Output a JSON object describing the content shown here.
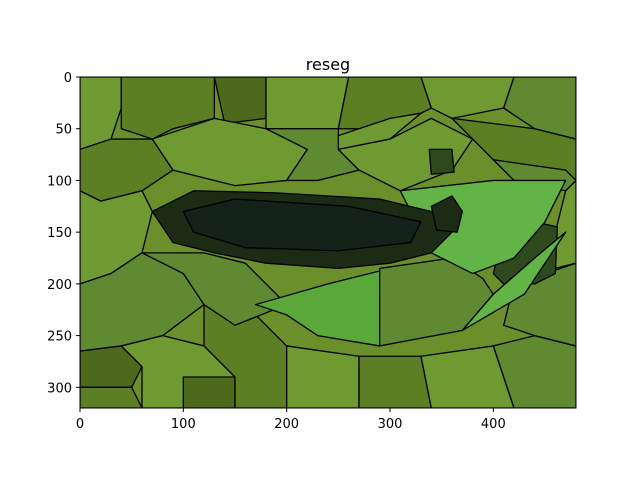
{
  "chart_data": {
    "type": "heatmap",
    "title": "reseg",
    "image_size": {
      "width": 480,
      "height": 320
    },
    "xlim": [
      0,
      480
    ],
    "ylim": [
      320,
      0
    ],
    "x_ticks": [
      0,
      100,
      200,
      300,
      400
    ],
    "y_ticks": [
      0,
      50,
      100,
      150,
      200,
      250,
      300
    ],
    "grid": false,
    "colors": {
      "background": "#6b8f2a",
      "olive": "#5c7f24",
      "darkolive": "#4d6a1c",
      "midgreen": "#5f8a32",
      "brightgreen": "#5aa83a",
      "lightgreen": "#62b447",
      "paleolive": "#6f9a32",
      "darkbody": "#1c2c14",
      "blackgreen": "#13231a",
      "darkpatch": "#2e4a1c",
      "boundary": "#000000"
    },
    "regions": [
      {
        "name": "bg-top-left",
        "color": "paleolive",
        "points": [
          [
            0,
            0
          ],
          [
            40,
            0
          ],
          [
            40,
            30
          ],
          [
            30,
            60
          ],
          [
            0,
            70
          ]
        ]
      },
      {
        "name": "bg-top-a",
        "color": "olive",
        "points": [
          [
            40,
            0
          ],
          [
            130,
            0
          ],
          [
            130,
            40
          ],
          [
            90,
            50
          ],
          [
            70,
            60
          ],
          [
            40,
            50
          ]
        ]
      },
      {
        "name": "bg-top-b",
        "color": "darkolive",
        "points": [
          [
            130,
            0
          ],
          [
            180,
            0
          ],
          [
            180,
            40
          ],
          [
            140,
            45
          ]
        ]
      },
      {
        "name": "bg-top-c",
        "color": "paleolive",
        "points": [
          [
            180,
            0
          ],
          [
            260,
            0
          ],
          [
            250,
            50
          ],
          [
            180,
            50
          ]
        ]
      },
      {
        "name": "bg-top-d",
        "color": "olive",
        "points": [
          [
            260,
            0
          ],
          [
            330,
            0
          ],
          [
            340,
            30
          ],
          [
            300,
            50
          ],
          [
            250,
            50
          ]
        ]
      },
      {
        "name": "bg-top-e",
        "color": "paleolive",
        "points": [
          [
            330,
            0
          ],
          [
            420,
            0
          ],
          [
            410,
            30
          ],
          [
            360,
            40
          ],
          [
            340,
            30
          ]
        ]
      },
      {
        "name": "bg-top-f",
        "color": "midgreen",
        "points": [
          [
            420,
            0
          ],
          [
            480,
            0
          ],
          [
            480,
            60
          ],
          [
            440,
            50
          ],
          [
            410,
            30
          ]
        ]
      },
      {
        "name": "bg-strip",
        "color": "paleolive",
        "points": [
          [
            240,
            60
          ],
          [
            300,
            40
          ],
          [
            330,
            35
          ],
          [
            300,
            60
          ],
          [
            250,
            70
          ]
        ]
      },
      {
        "name": "bg-left-mid",
        "color": "olive",
        "points": [
          [
            0,
            70
          ],
          [
            30,
            60
          ],
          [
            70,
            60
          ],
          [
            90,
            90
          ],
          [
            60,
            110
          ],
          [
            20,
            120
          ],
          [
            0,
            110
          ]
        ]
      },
      {
        "name": "bg-mid-a",
        "color": "paleolive",
        "points": [
          [
            70,
            60
          ],
          [
            130,
            40
          ],
          [
            180,
            50
          ],
          [
            220,
            70
          ],
          [
            200,
            100
          ],
          [
            150,
            105
          ],
          [
            90,
            90
          ]
        ]
      },
      {
        "name": "bg-mid-b",
        "color": "midgreen",
        "points": [
          [
            180,
            50
          ],
          [
            250,
            50
          ],
          [
            250,
            70
          ],
          [
            270,
            90
          ],
          [
            230,
            100
          ],
          [
            200,
            100
          ],
          [
            220,
            70
          ]
        ]
      },
      {
        "name": "bg-mid-c",
        "color": "paleolive",
        "points": [
          [
            250,
            70
          ],
          [
            300,
            60
          ],
          [
            340,
            40
          ],
          [
            380,
            60
          ],
          [
            360,
            90
          ],
          [
            310,
            110
          ],
          [
            270,
            90
          ]
        ]
      },
      {
        "name": "bg-mid-d",
        "color": "olive",
        "points": [
          [
            360,
            40
          ],
          [
            440,
            50
          ],
          [
            480,
            60
          ],
          [
            480,
            100
          ],
          [
            440,
            95
          ],
          [
            400,
            80
          ],
          [
            380,
            60
          ]
        ]
      },
      {
        "name": "small-dark-square",
        "color": "darkpatch",
        "points": [
          [
            338,
            70
          ],
          [
            360,
            70
          ],
          [
            362,
            92
          ],
          [
            340,
            94
          ]
        ]
      },
      {
        "name": "bg-right-mid",
        "color": "midgreen",
        "points": [
          [
            400,
            80
          ],
          [
            470,
            90
          ],
          [
            480,
            100
          ],
          [
            470,
            110
          ],
          [
            420,
            100
          ]
        ]
      },
      {
        "name": "bg-left-lower",
        "color": "paleolive",
        "points": [
          [
            0,
            110
          ],
          [
            20,
            120
          ],
          [
            60,
            110
          ],
          [
            70,
            130
          ],
          [
            60,
            170
          ],
          [
            30,
            190
          ],
          [
            0,
            200
          ]
        ]
      },
      {
        "name": "bg-left-bottom-a",
        "color": "midgreen",
        "points": [
          [
            0,
            200
          ],
          [
            30,
            190
          ],
          [
            60,
            170
          ],
          [
            100,
            190
          ],
          [
            120,
            220
          ],
          [
            80,
            250
          ],
          [
            40,
            260
          ],
          [
            0,
            265
          ]
        ]
      },
      {
        "name": "bg-left-bottom-b",
        "color": "darkolive",
        "points": [
          [
            0,
            265
          ],
          [
            40,
            260
          ],
          [
            60,
            280
          ],
          [
            50,
            300
          ],
          [
            0,
            300
          ]
        ]
      },
      {
        "name": "bg-left-corner",
        "color": "olive",
        "points": [
          [
            0,
            300
          ],
          [
            50,
            300
          ],
          [
            60,
            320
          ],
          [
            0,
            320
          ]
        ]
      },
      {
        "name": "bg-bottom-a",
        "color": "paleolive",
        "points": [
          [
            40,
            260
          ],
          [
            80,
            250
          ],
          [
            120,
            260
          ],
          [
            150,
            290
          ],
          [
            140,
            320
          ],
          [
            60,
            320
          ],
          [
            60,
            280
          ]
        ]
      },
      {
        "name": "bg-bottom-b",
        "color": "darkolive",
        "points": [
          [
            100,
            290
          ],
          [
            150,
            290
          ],
          [
            150,
            320
          ],
          [
            100,
            320
          ]
        ]
      },
      {
        "name": "bg-bottom-c",
        "color": "olive",
        "points": [
          [
            120,
            220
          ],
          [
            170,
            230
          ],
          [
            200,
            260
          ],
          [
            200,
            320
          ],
          [
            150,
            320
          ],
          [
            150,
            290
          ],
          [
            120,
            260
          ]
        ]
      },
      {
        "name": "bg-bottom-d",
        "color": "paleolive",
        "points": [
          [
            200,
            260
          ],
          [
            270,
            270
          ],
          [
            270,
            320
          ],
          [
            200,
            320
          ]
        ]
      },
      {
        "name": "bg-bottom-e",
        "color": "olive",
        "points": [
          [
            270,
            270
          ],
          [
            330,
            270
          ],
          [
            340,
            320
          ],
          [
            270,
            320
          ]
        ]
      },
      {
        "name": "bg-bottom-f",
        "color": "paleolive",
        "points": [
          [
            330,
            270
          ],
          [
            400,
            260
          ],
          [
            420,
            320
          ],
          [
            340,
            320
          ]
        ]
      },
      {
        "name": "bg-bottom-g",
        "color": "midgreen",
        "points": [
          [
            400,
            260
          ],
          [
            440,
            250
          ],
          [
            480,
            260
          ],
          [
            480,
            320
          ],
          [
            420,
            320
          ]
        ]
      },
      {
        "name": "bg-right-lower",
        "color": "midgreen",
        "points": [
          [
            420,
            200
          ],
          [
            480,
            180
          ],
          [
            480,
            260
          ],
          [
            440,
            250
          ],
          [
            410,
            240
          ]
        ]
      },
      {
        "name": "bg-right-a",
        "color": "paleolive",
        "points": [
          [
            470,
            110
          ],
          [
            480,
            100
          ],
          [
            480,
            180
          ],
          [
            440,
            190
          ],
          [
            460,
            150
          ]
        ]
      },
      {
        "name": "dark-right-patch",
        "color": "darkpatch",
        "points": [
          [
            400,
            190
          ],
          [
            410,
            150
          ],
          [
            440,
            140
          ],
          [
            462,
            145
          ],
          [
            460,
            190
          ],
          [
            440,
            200
          ],
          [
            410,
            200
          ]
        ]
      },
      {
        "name": "mid-left-body-area",
        "color": "midgreen",
        "points": [
          [
            60,
            170
          ],
          [
            120,
            170
          ],
          [
            160,
            180
          ],
          [
            200,
            220
          ],
          [
            150,
            240
          ],
          [
            120,
            220
          ],
          [
            100,
            190
          ]
        ]
      },
      {
        "name": "bright-wing-left",
        "color": "brightgreen",
        "points": [
          [
            170,
            220
          ],
          [
            240,
            200
          ],
          [
            300,
            185
          ],
          [
            290,
            260
          ],
          [
            230,
            250
          ],
          [
            200,
            230
          ]
        ]
      },
      {
        "name": "bright-wing-mid",
        "color": "midgreen",
        "points": [
          [
            290,
            185
          ],
          [
            360,
            175
          ],
          [
            390,
            195
          ],
          [
            400,
            210
          ],
          [
            370,
            245
          ],
          [
            290,
            260
          ]
        ]
      },
      {
        "name": "bright-wing-right",
        "color": "lightgreen",
        "points": [
          [
            370,
            245
          ],
          [
            400,
            210
          ],
          [
            440,
            175
          ],
          [
            470,
            150
          ],
          [
            430,
            210
          ]
        ]
      },
      {
        "name": "light-wing-top",
        "color": "lightgreen",
        "points": [
          [
            310,
            110
          ],
          [
            400,
            100
          ],
          [
            470,
            100
          ],
          [
            450,
            140
          ],
          [
            420,
            175
          ],
          [
            380,
            190
          ],
          [
            340,
            170
          ]
        ]
      },
      {
        "name": "dragonfly-body",
        "color": "darkbody",
        "points": [
          [
            70,
            130
          ],
          [
            110,
            110
          ],
          [
            190,
            112
          ],
          [
            290,
            118
          ],
          [
            340,
            130
          ],
          [
            360,
            150
          ],
          [
            340,
            170
          ],
          [
            300,
            180
          ],
          [
            250,
            185
          ],
          [
            180,
            180
          ],
          [
            130,
            170
          ],
          [
            90,
            160
          ]
        ]
      },
      {
        "name": "dragonfly-core",
        "color": "blackgreen",
        "points": [
          [
            100,
            130
          ],
          [
            150,
            118
          ],
          [
            260,
            125
          ],
          [
            330,
            140
          ],
          [
            320,
            160
          ],
          [
            250,
            168
          ],
          [
            160,
            165
          ],
          [
            110,
            150
          ]
        ]
      },
      {
        "name": "dragonfly-head",
        "color": "darkbody",
        "points": [
          [
            340,
            125
          ],
          [
            360,
            115
          ],
          [
            370,
            130
          ],
          [
            365,
            150
          ],
          [
            345,
            148
          ]
        ]
      }
    ]
  }
}
